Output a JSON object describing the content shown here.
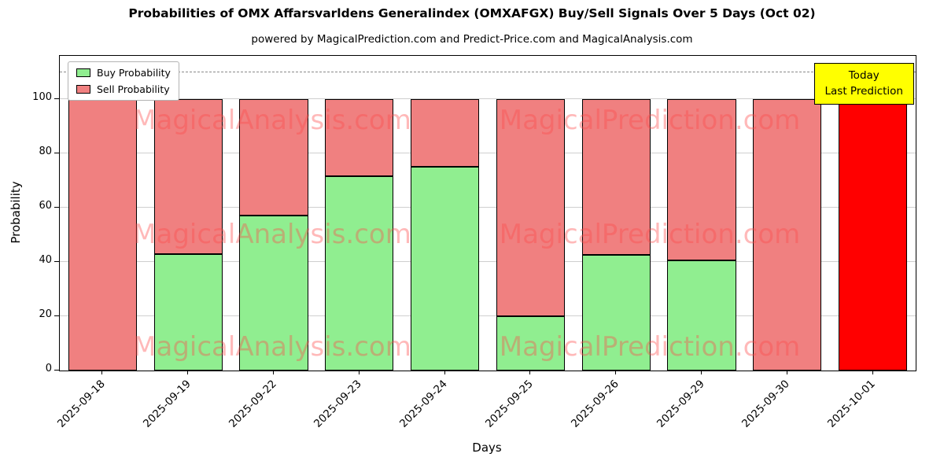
{
  "title": "Probabilities of OMX Affarsvarldens Generalindex (OMXAFGX) Buy/Sell Signals Over 5 Days (Oct 02)",
  "subtitle": "powered by MagicalPrediction.com and Predict-Price.com and MagicalAnalysis.com",
  "axes": {
    "xlabel": "Days",
    "ylabel": "Probability"
  },
  "annotation": {
    "line1": "Today",
    "line2": "Last Prediction",
    "bg": "#FFFF00"
  },
  "watermarks": {
    "left": "MagicalAnalysis.com",
    "right": "MagicalPrediction.com",
    "color": "#FF4A4A",
    "opacity": 0.38
  },
  "chart_data": {
    "type": "bar",
    "stacked": true,
    "title": "Probabilities of OMX Affarsvarldens Generalindex (OMXAFGX) Buy/Sell Signals Over 5 Days (Oct 02)",
    "xlabel": "Days",
    "ylabel": "Probability",
    "categories": [
      "2025-09-18",
      "2025-09-19",
      "2025-09-22",
      "2025-09-23",
      "2025-09-24",
      "2025-09-25",
      "2025-09-26",
      "2025-09-29",
      "2025-09-30",
      "2025-10-01"
    ],
    "series": [
      {
        "name": "Buy Probability",
        "color": "#90EE90",
        "values": [
          0,
          43,
          57,
          71.5,
          75,
          20,
          42.5,
          40.5,
          0,
          0
        ]
      },
      {
        "name": "Sell Probability",
        "color": "#F08080",
        "values": [
          100,
          57,
          43,
          28.5,
          25,
          80,
          57.5,
          59.5,
          100,
          100
        ]
      }
    ],
    "last_bar_color": "#FF0000",
    "dashed_line_y": 110,
    "ylim": [
      0,
      116
    ],
    "yticks": [
      0,
      20,
      40,
      60,
      80,
      100
    ],
    "grid": "horizontal",
    "legend_position": "upper left"
  }
}
